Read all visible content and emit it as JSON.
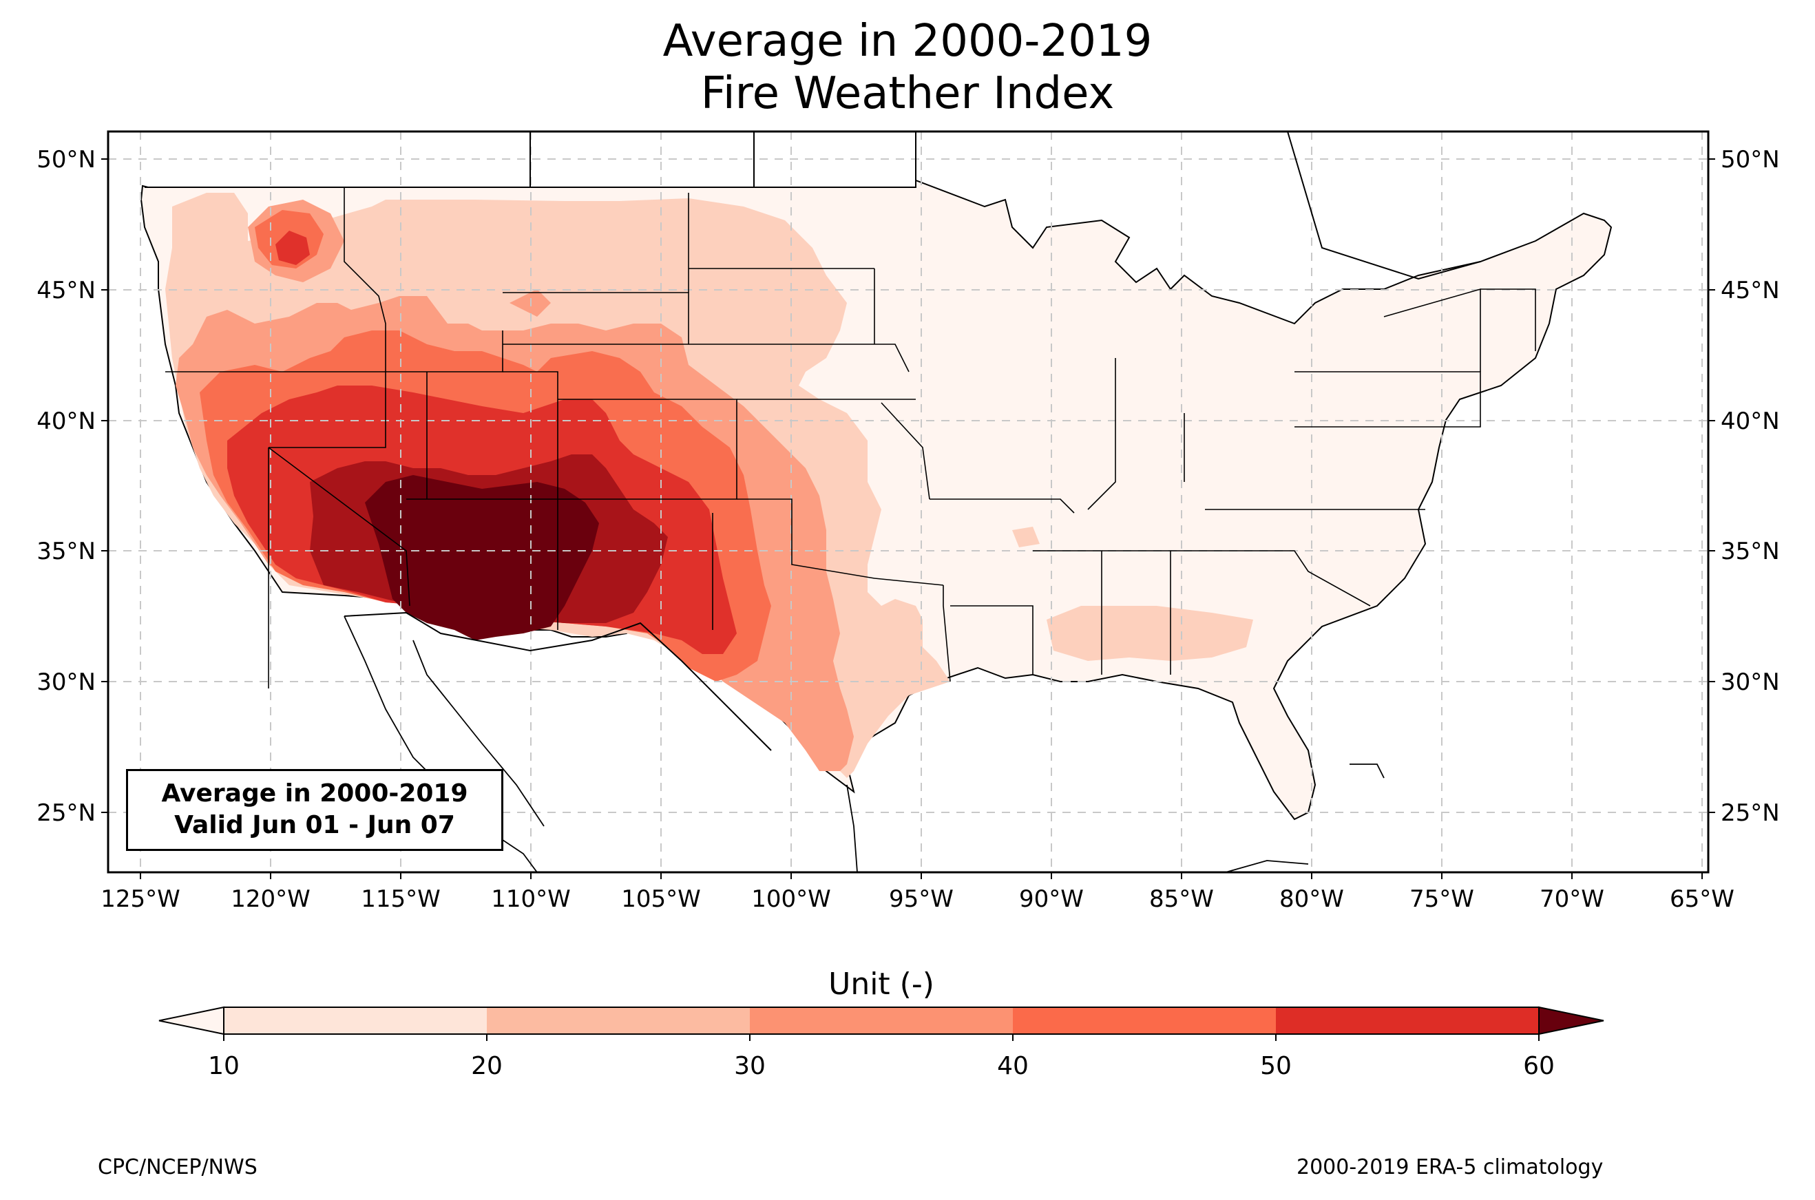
{
  "title_line1": "Average in 2000-2019",
  "title_line2": "Fire Weather Index",
  "stamp": {
    "line1": "Average in 2000-2019",
    "line2": "Valid Jun 01 - Jun 07"
  },
  "colorbar": {
    "label": "Unit (-)",
    "ticks": [
      "10",
      "20",
      "30",
      "40",
      "50",
      "60"
    ],
    "colors": [
      "#fee5d9",
      "#fcbba1",
      "#fc9272",
      "#fb6a4a",
      "#de2d26",
      "#a50f15",
      "#67000d"
    ],
    "under_color": "#fff5f0",
    "over_color": "#67000d"
  },
  "map": {
    "lat_labels": [
      "50°N",
      "45°N",
      "40°N",
      "35°N",
      "30°N",
      "25°N"
    ],
    "lon_labels": [
      "125°W",
      "120°W",
      "115°W",
      "110°W",
      "105°W",
      "100°W",
      "95°W",
      "90°W",
      "85°W",
      "80°W",
      "75°W",
      "70°W",
      "65°W"
    ],
    "gridlines": true,
    "extent": {
      "lon": [
        -126.3,
        -64.9
      ],
      "lat": [
        22.8,
        51.2
      ]
    },
    "fill_colors": {
      "lt10": "#fff5f0",
      "b10_20": "#fdd0bd",
      "b20_30": "#fc9e82",
      "b30_40": "#f96e4f",
      "b40_50": "#e0312b",
      "b50_60": "#a81419",
      "gt60": "#6a000d"
    }
  },
  "footer": {
    "left": "CPC/NCEP/NWS",
    "right": "2000-2019 ERA-5 climatology"
  }
}
